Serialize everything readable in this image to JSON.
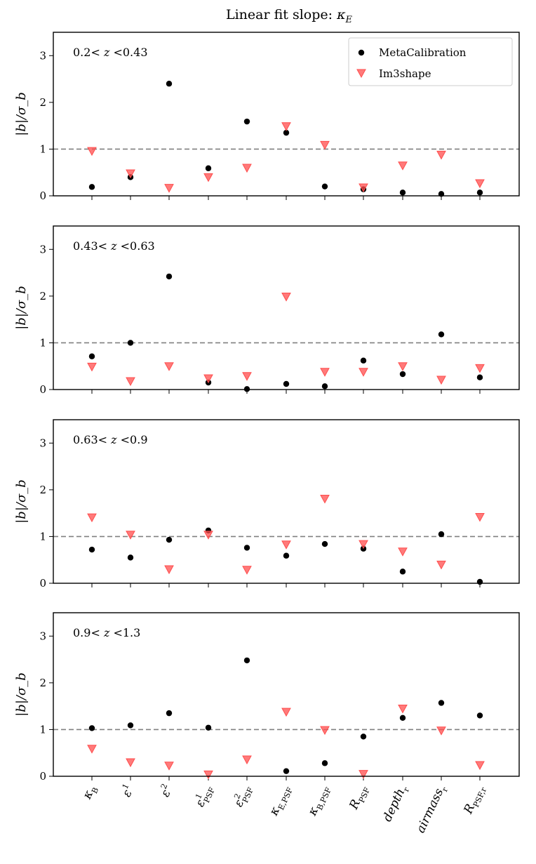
{
  "figure": {
    "title": "Linear fit slope: κ_E",
    "title_parts": {
      "prefix": "Linear fit slope: ",
      "symbol": "κ",
      "sub": "E"
    },
    "legend_placement": "top-right of first panel"
  },
  "chart_data": {
    "type": "scatter",
    "title": "Linear fit slope: κ_E",
    "ylabel": "|b|/σ_b",
    "ylim": [
      0,
      3.5
    ],
    "yticks": [
      0,
      1,
      2,
      3
    ],
    "reference_line": {
      "y": 1,
      "style": "dashed",
      "color": "#808080"
    },
    "grid": false,
    "categories": [
      "κ_B",
      "ε^1",
      "ε^2",
      "ε^1_PSF",
      "ε^2_PSF",
      "κ_E,PSF",
      "κ_B,PSF",
      "R_PSF",
      "depth_r",
      "airmass_r",
      "R_PSF,r"
    ],
    "category_labels": [
      {
        "main": "κ",
        "sub": "B",
        "sup": ""
      },
      {
        "main": "ε",
        "sub": "",
        "sup": "1"
      },
      {
        "main": "ε",
        "sub": "",
        "sup": "2"
      },
      {
        "main": "ε",
        "sub": "PSF",
        "sup": "1"
      },
      {
        "main": "ε",
        "sub": "PSF",
        "sup": "2"
      },
      {
        "main": "κ",
        "sub": "E,PSF",
        "sup": ""
      },
      {
        "main": "κ",
        "sub": "B,PSF",
        "sup": ""
      },
      {
        "main": "R",
        "sub": "PSF",
        "sup": ""
      },
      {
        "main": "depth",
        "sub": "r",
        "sup": ""
      },
      {
        "main": "airmass",
        "sub": "r",
        "sup": ""
      },
      {
        "main": "R",
        "sub": "PSF,r",
        "sup": ""
      }
    ],
    "legend": [
      {
        "name": "MetaCalibration",
        "marker": "circle",
        "color": "#000000"
      },
      {
        "name": "Im3shape",
        "marker": "triangle-down",
        "color": "#ff4d4d"
      }
    ],
    "panels": [
      {
        "label": "0.2< z <0.43",
        "label_parts": {
          "left": "0.2< ",
          "var": "z",
          "right": " <0.43"
        },
        "series": [
          {
            "name": "MetaCalibration",
            "values": [
              0.19,
              0.4,
              2.4,
              0.59,
              1.59,
              1.35,
              0.2,
              0.14,
              0.07,
              0.04,
              0.07
            ]
          },
          {
            "name": "Im3shape",
            "values": [
              0.96,
              0.48,
              0.17,
              0.4,
              0.6,
              1.49,
              1.09,
              0.18,
              0.65,
              0.88,
              0.27
            ]
          }
        ]
      },
      {
        "label": "0.43< z <0.63",
        "label_parts": {
          "left": "0.43< ",
          "var": "z",
          "right": " <0.63"
        },
        "series": [
          {
            "name": "MetaCalibration",
            "values": [
              0.71,
              1.0,
              2.42,
              0.15,
              0.01,
              0.12,
              0.07,
              0.62,
              0.33,
              1.18,
              0.26
            ]
          },
          {
            "name": "Im3shape",
            "values": [
              0.49,
              0.18,
              0.5,
              0.24,
              0.29,
              1.99,
              0.38,
              0.38,
              0.5,
              0.21,
              0.46
            ]
          }
        ]
      },
      {
        "label": "0.63< z <0.9",
        "label_parts": {
          "left": "0.63< ",
          "var": "z",
          "right": " <0.9"
        },
        "series": [
          {
            "name": "MetaCalibration",
            "values": [
              0.72,
              0.55,
              0.93,
              1.13,
              0.76,
              0.59,
              0.84,
              0.74,
              0.25,
              1.05,
              0.03
            ]
          },
          {
            "name": "Im3shape",
            "values": [
              1.41,
              1.04,
              0.3,
              1.04,
              0.29,
              0.83,
              1.81,
              0.84,
              0.68,
              0.4,
              1.42
            ]
          }
        ]
      },
      {
        "label": "0.9< z <1.3",
        "label_parts": {
          "left": "0.9< ",
          "var": "z",
          "right": " <1.3"
        },
        "series": [
          {
            "name": "MetaCalibration",
            "values": [
              1.03,
              1.09,
              1.35,
              1.04,
              2.48,
              0.11,
              0.28,
              0.85,
              1.25,
              1.57,
              1.3
            ]
          },
          {
            "name": "Im3shape",
            "values": [
              0.59,
              0.3,
              0.23,
              0.04,
              0.36,
              1.38,
              0.99,
              0.05,
              1.45,
              0.98,
              0.24
            ]
          }
        ]
      }
    ]
  }
}
